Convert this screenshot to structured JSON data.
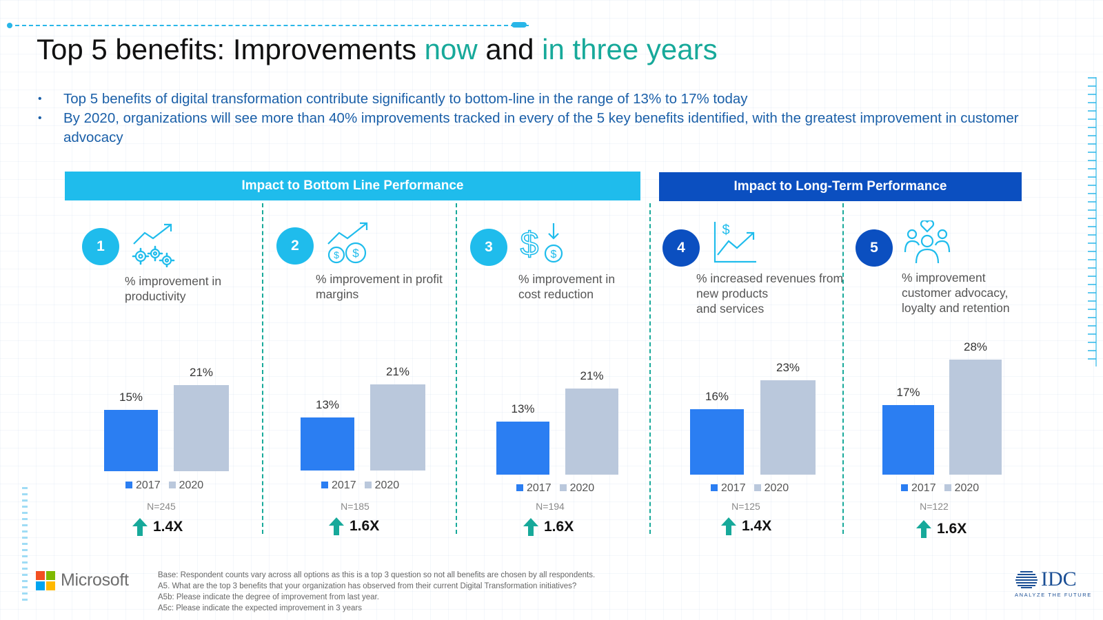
{
  "title": {
    "part1": "Top 5 benefits: Improvements ",
    "part2": "now",
    "part3": " and ",
    "part4": "in three years"
  },
  "bullets": [
    "Top 5 benefits of digital transformation contribute significantly to bottom-line in the range of 13% to 17% today",
    "By 2020, organizations will see more than 40% improvements tracked in every of the 5 key benefits identified, with the greatest improvement in customer advocacy"
  ],
  "banners": {
    "bottom_line": "Impact to Bottom Line Performance",
    "long_term": "Impact to Long-Term Performance"
  },
  "panels": [
    {
      "number": "1",
      "desc1": "% improvement in",
      "desc2": "productivity",
      "desc3": "",
      "n": "N=245",
      "growth": "1.4X",
      "icon": "trend-gears-icon"
    },
    {
      "number": "2",
      "desc1": "% improvement in profit",
      "desc2": "margins",
      "desc3": "",
      "n": "N=185",
      "growth": "1.6X",
      "icon": "trend-coins-icon"
    },
    {
      "number": "3",
      "desc1": "% improvement in",
      "desc2": "cost reduction",
      "desc3": "",
      "n": "N=194",
      "growth": "1.6X",
      "icon": "dollar-down-icon"
    },
    {
      "number": "4",
      "desc1": "% increased revenues from",
      "desc2": "new products",
      "desc3": "and services",
      "n": "N=125",
      "growth": "1.4X",
      "icon": "revenue-chart-icon"
    },
    {
      "number": "5",
      "desc1": "% improvement",
      "desc2": "customer advocacy,",
      "desc3": "loyalty and retention",
      "n": "N=122",
      "growth": "1.6X",
      "icon": "people-heart-icon"
    }
  ],
  "legend": {
    "a": "2017",
    "b": "2020"
  },
  "chart_data": [
    {
      "type": "bar",
      "categories": [
        "2017",
        "2020"
      ],
      "values": [
        15,
        21
      ],
      "labels": [
        "15%",
        "21%"
      ],
      "title": "% improvement in productivity",
      "xlabel": "",
      "ylabel": ""
    },
    {
      "type": "bar",
      "categories": [
        "2017",
        "2020"
      ],
      "values": [
        13,
        21
      ],
      "labels": [
        "13%",
        "21%"
      ],
      "title": "% improvement in profit margins",
      "xlabel": "",
      "ylabel": ""
    },
    {
      "type": "bar",
      "categories": [
        "2017",
        "2020"
      ],
      "values": [
        13,
        21
      ],
      "labels": [
        "13%",
        "21%"
      ],
      "title": "% improvement in cost reduction",
      "xlabel": "",
      "ylabel": ""
    },
    {
      "type": "bar",
      "categories": [
        "2017",
        "2020"
      ],
      "values": [
        16,
        23
      ],
      "labels": [
        "16%",
        "23%"
      ],
      "title": "% increased revenues from new products and services",
      "xlabel": "",
      "ylabel": ""
    },
    {
      "type": "bar",
      "categories": [
        "2017",
        "2020"
      ],
      "values": [
        17,
        28
      ],
      "labels": [
        "17%",
        "28%"
      ],
      "title": "% improvement customer advocacy, loyalty and retention",
      "xlabel": "",
      "ylabel": ""
    }
  ],
  "colors": {
    "bar_2017": "#2b7ef2",
    "bar_2020": "#bac8dc",
    "accent_teal": "#17a99a",
    "banner_cyan": "#1fbcec",
    "banner_navy": "#0b4fc0",
    "bullet_blue": "#1a5fa8"
  },
  "footnotes": [
    "Base: Respondent counts vary across all options as this is a top 3 question so not all benefits are chosen by all respondents.",
    "A5. What are the top 3 benefits that your organization has observed from their current Digital Transformation initiatives?",
    "A5b: Please indicate the degree of improvement from last year.",
    "A5c: Please indicate the expected improvement in 3 years"
  ],
  "logos": {
    "microsoft": "Microsoft",
    "idc": "IDC",
    "idc_tagline": "ANALYZE THE FUTURE"
  }
}
